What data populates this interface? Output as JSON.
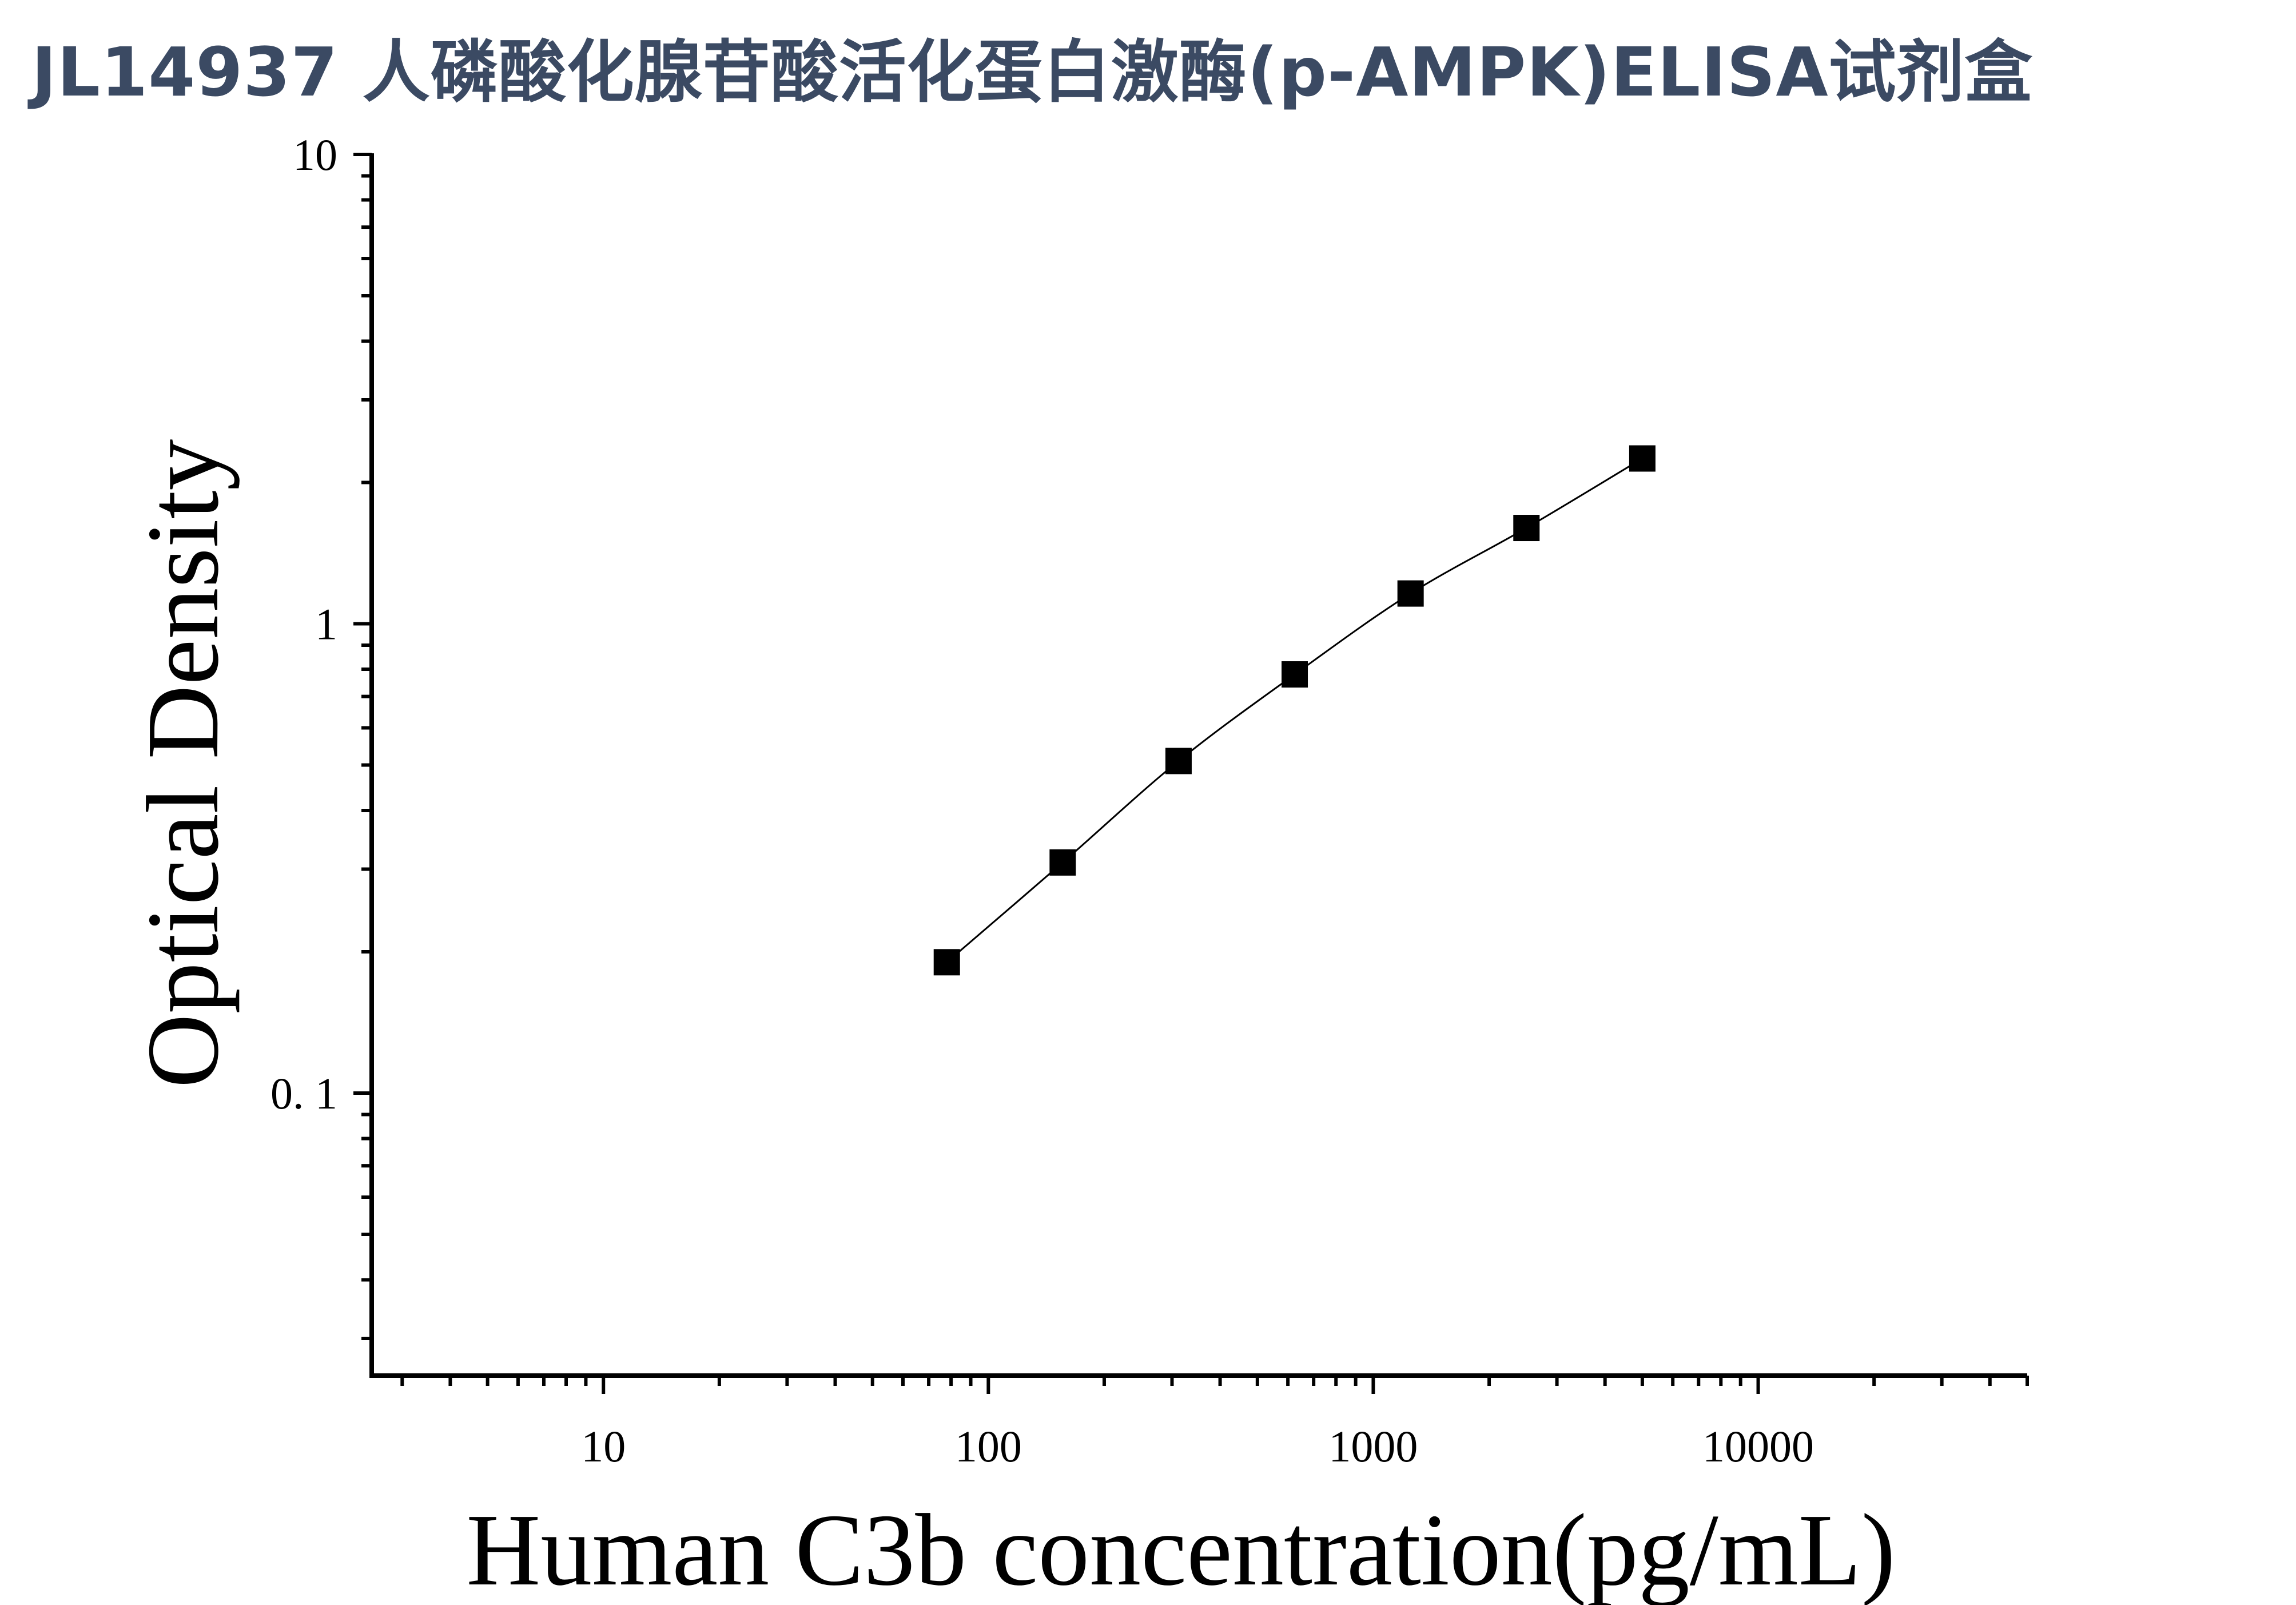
{
  "chart_data": {
    "type": "scatter",
    "title": "JL14937 人磷酸化腺苷酸活化蛋白激酶(p-AMPK)ELISA试剂盒",
    "xlabel": "Human C3b concentration(pg/mL)",
    "ylabel": "Optical Density",
    "x_scale": "log",
    "y_scale": "log",
    "xlim": [
      2.5,
      50000
    ],
    "ylim": [
      0.025,
      10
    ],
    "x_ticks": [
      10,
      100,
      1000,
      10000
    ],
    "x_tick_labels": [
      "10",
      "100",
      "1000",
      "10000"
    ],
    "y_ticks": [
      0.1,
      1,
      10
    ],
    "y_tick_labels": [
      "0. 1",
      "1",
      "10"
    ],
    "series": [
      {
        "x": [
          78,
          156,
          312,
          625,
          1250,
          2500,
          5000
        ],
        "y": [
          0.19,
          0.31,
          0.51,
          0.78,
          1.16,
          1.6,
          2.25
        ],
        "marker": "square",
        "color": "#000000",
        "fit_line": true
      }
    ]
  }
}
